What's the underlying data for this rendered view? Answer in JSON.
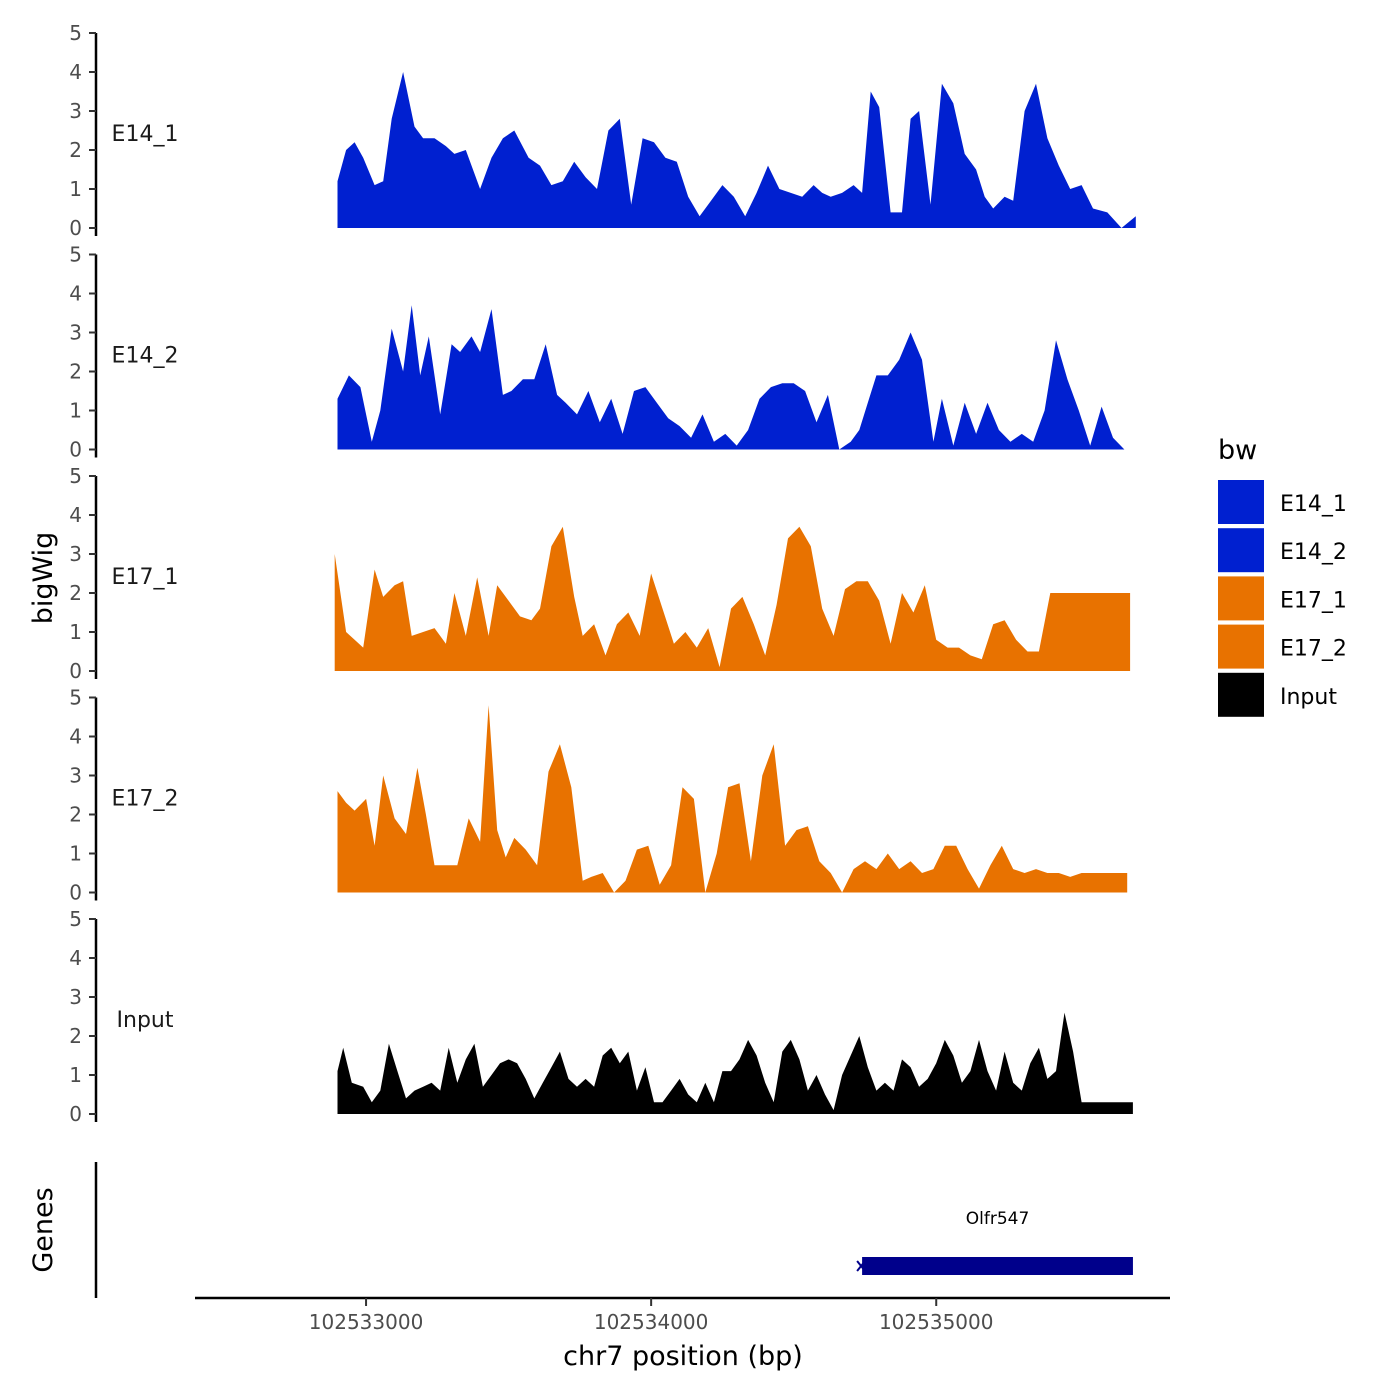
{
  "chart_data": {
    "type": "area",
    "ylabel": "bigWig",
    "xlabel": "chr7 position (bp)",
    "ylim": [
      0,
      5
    ],
    "yticks": [
      0,
      1,
      2,
      3,
      4,
      5
    ],
    "xlim": [
      102532400,
      102535820
    ],
    "xticks": [
      102533000,
      102534000,
      102535000
    ],
    "xtick_labels": [
      "102533000",
      "102534000",
      "102535000"
    ],
    "genes_label": "Genes",
    "legend": {
      "title": "bw",
      "entries": [
        {
          "label": "E14_1",
          "color": "#0020d0"
        },
        {
          "label": "E14_2",
          "color": "#0020d0"
        },
        {
          "label": "E17_1",
          "color": "#e87200"
        },
        {
          "label": "E17_2",
          "color": "#e87200"
        },
        {
          "label": "Input",
          "color": "#000000"
        }
      ]
    },
    "series": [
      {
        "name": "E14_1",
        "color": "#0020d0",
        "x": [
          102532900,
          102532930,
          102532960,
          102532990,
          102533030,
          102533060,
          102533090,
          102533130,
          102533170,
          102533200,
          102533240,
          102533280,
          102533310,
          102533350,
          102533400,
          102533440,
          102533480,
          102533520,
          102533570,
          102533610,
          102533650,
          102533690,
          102533730,
          102533770,
          102533810,
          102533850,
          102533890,
          102533930,
          102533970,
          102534010,
          102534050,
          102534090,
          102534130,
          102534170,
          102534210,
          102534250,
          102534290,
          102534330,
          102534370,
          102534410,
          102534450,
          102534490,
          102534530,
          102534570,
          102534600,
          102534630,
          102534670,
          102534710,
          102534740,
          102534770,
          102534800,
          102534840,
          102534880,
          102534910,
          102534940,
          102534980,
          102535020,
          102535060,
          102535100,
          102535140,
          102535170,
          102535200,
          102535240,
          102535270,
          102535310,
          102535350,
          102535390,
          102535430,
          102535470,
          102535510,
          102535550,
          102535600,
          102535650,
          102535700
        ],
        "values": [
          1.2,
          2.0,
          2.2,
          1.8,
          1.1,
          1.2,
          2.8,
          4.0,
          2.6,
          2.3,
          2.3,
          2.1,
          1.9,
          2.0,
          1.0,
          1.8,
          2.3,
          2.5,
          1.8,
          1.6,
          1.1,
          1.2,
          1.7,
          1.3,
          1.0,
          2.5,
          2.8,
          0.6,
          2.3,
          2.2,
          1.8,
          1.7,
          0.8,
          0.3,
          0.7,
          1.1,
          0.8,
          0.3,
          0.9,
          1.6,
          1.0,
          0.9,
          0.8,
          1.1,
          0.9,
          0.8,
          0.9,
          1.1,
          0.9,
          3.5,
          3.1,
          0.4,
          0.4,
          2.8,
          3.0,
          0.6,
          3.7,
          3.2,
          1.9,
          1.5,
          0.8,
          0.5,
          0.8,
          0.7,
          3.0,
          3.7,
          2.3,
          1.6,
          1.0,
          1.1,
          0.5,
          0.4,
          0.0,
          0.3
        ]
      },
      {
        "name": "E14_2",
        "color": "#0020d0",
        "x": [
          102532900,
          102532940,
          102532980,
          102533020,
          102533050,
          102533090,
          102533130,
          102533160,
          102533190,
          102533220,
          102533260,
          102533300,
          102533330,
          102533370,
          102533400,
          102533440,
          102533480,
          102533510,
          102533550,
          102533590,
          102533630,
          102533670,
          102533700,
          102533740,
          102533780,
          102533820,
          102533860,
          102533900,
          102533940,
          102533980,
          102534020,
          102534060,
          102534100,
          102534140,
          102534180,
          102534220,
          102534260,
          102534300,
          102534340,
          102534380,
          102534420,
          102534460,
          102534500,
          102534540,
          102534580,
          102534620,
          102534660,
          102534700,
          102534730,
          102534760,
          102534790,
          102534830,
          102534870,
          102534910,
          102534950,
          102534990,
          102535020,
          102535060,
          102535100,
          102535140,
          102535180,
          102535220,
          102535260,
          102535300,
          102535340,
          102535380,
          102535420,
          102535460,
          102535500,
          102535540,
          102535580,
          102535620,
          102535660,
          102535700
        ],
        "values": [
          1.3,
          1.9,
          1.6,
          0.2,
          1.0,
          3.1,
          2.0,
          3.7,
          1.9,
          2.9,
          0.9,
          2.7,
          2.5,
          2.9,
          2.5,
          3.6,
          1.4,
          1.5,
          1.8,
          1.8,
          2.7,
          1.4,
          1.2,
          0.9,
          1.5,
          0.7,
          1.3,
          0.4,
          1.5,
          1.6,
          1.2,
          0.8,
          0.6,
          0.3,
          0.9,
          0.2,
          0.4,
          0.1,
          0.5,
          1.3,
          1.6,
          1.7,
          1.7,
          1.5,
          0.7,
          1.4,
          0.0,
          0.2,
          0.5,
          1.2,
          1.9,
          1.9,
          2.3,
          3.0,
          2.3,
          0.2,
          1.3,
          0.1,
          1.2,
          0.4,
          1.2,
          0.5,
          0.2,
          0.4,
          0.2,
          1.0,
          2.8,
          1.8,
          1.0,
          0.1,
          1.1,
          0.3,
          0.0,
          0.0
        ]
      },
      {
        "name": "E17_1",
        "color": "#e87200",
        "x": [
          102532890,
          102532930,
          102532960,
          102532990,
          102533030,
          102533060,
          102533100,
          102533130,
          102533160,
          102533200,
          102533240,
          102533280,
          102533310,
          102533350,
          102533390,
          102533430,
          102533460,
          102533500,
          102533540,
          102533580,
          102533610,
          102533650,
          102533690,
          102533730,
          102533760,
          102533800,
          102533840,
          102533880,
          102533920,
          102533960,
          102534000,
          102534040,
          102534080,
          102534120,
          102534160,
          102534200,
          102534240,
          102534280,
          102534320,
          102534360,
          102534400,
          102534440,
          102534480,
          102534520,
          102534560,
          102534600,
          102534640,
          102534680,
          102534720,
          102534760,
          102534800,
          102534840,
          102534880,
          102534920,
          102534960,
          102535000,
          102535040,
          102535080,
          102535120,
          102535160,
          102535200,
          102535240,
          102535280,
          102535320,
          102535360,
          102535400,
          102535440,
          102535480,
          102535520,
          102535560,
          102535600,
          102535640,
          102535680
        ],
        "values": [
          3.0,
          1.0,
          0.8,
          0.6,
          2.6,
          1.9,
          2.2,
          2.3,
          0.9,
          1.0,
          1.1,
          0.7,
          2.0,
          0.9,
          2.4,
          0.9,
          2.2,
          1.8,
          1.4,
          1.3,
          1.6,
          3.2,
          3.7,
          1.9,
          0.9,
          1.2,
          0.4,
          1.2,
          1.5,
          0.9,
          2.5,
          1.6,
          0.7,
          1.0,
          0.6,
          1.1,
          0.1,
          1.6,
          1.9,
          1.2,
          0.4,
          1.7,
          3.4,
          3.7,
          3.2,
          1.6,
          0.9,
          2.1,
          2.3,
          2.3,
          1.8,
          0.7,
          2.0,
          1.5,
          2.2,
          0.8,
          0.6,
          0.6,
          0.4,
          0.3,
          1.2,
          1.3,
          0.8,
          0.5,
          0.5,
          2.0,
          2.0,
          2.0,
          2.0,
          2.0,
          2.0,
          2.0,
          2.0
        ]
      },
      {
        "name": "E17_2",
        "color": "#e87200",
        "x": [
          102532900,
          102532930,
          102532960,
          102533000,
          102533030,
          102533060,
          102533100,
          102533140,
          102533180,
          102533210,
          102533240,
          102533280,
          102533320,
          102533360,
          102533400,
          102533430,
          102533460,
          102533490,
          102533520,
          102533560,
          102533600,
          102533640,
          102533680,
          102533720,
          102533760,
          102533790,
          102533830,
          102533870,
          102533910,
          102533950,
          102533990,
          102534030,
          102534070,
          102534110,
          102534150,
          102534190,
          102534230,
          102534270,
          102534310,
          102534350,
          102534390,
          102534430,
          102534470,
          102534510,
          102534550,
          102534590,
          102534630,
          102534670,
          102534710,
          102534750,
          102534790,
          102534830,
          102534870,
          102534910,
          102534950,
          102534990,
          102535030,
          102535070,
          102535110,
          102535150,
          102535190,
          102535230,
          102535270,
          102535310,
          102535350,
          102535390,
          102535430,
          102535470,
          102535510,
          102535550,
          102535590,
          102535630,
          102535670
        ],
        "values": [
          2.6,
          2.3,
          2.1,
          2.4,
          1.2,
          3.0,
          1.9,
          1.5,
          3.2,
          2.0,
          0.7,
          0.7,
          0.7,
          1.9,
          1.3,
          4.8,
          1.6,
          0.9,
          1.4,
          1.1,
          0.7,
          3.1,
          3.8,
          2.7,
          0.3,
          0.4,
          0.5,
          0.0,
          0.3,
          1.1,
          1.2,
          0.2,
          0.7,
          2.7,
          2.4,
          0.0,
          1.0,
          2.7,
          2.8,
          0.8,
          3.0,
          3.8,
          1.2,
          1.6,
          1.7,
          0.8,
          0.5,
          0.0,
          0.6,
          0.8,
          0.6,
          1.0,
          0.6,
          0.8,
          0.5,
          0.6,
          1.2,
          1.2,
          0.6,
          0.1,
          0.7,
          1.2,
          0.6,
          0.5,
          0.6,
          0.5,
          0.5,
          0.4,
          0.5,
          0.5,
          0.5,
          0.5,
          0.5
        ]
      },
      {
        "name": "Input",
        "color": "#000000",
        "x": [
          102532900,
          102532920,
          102532950,
          102532990,
          102533020,
          102533050,
          102533080,
          102533110,
          102533140,
          102533170,
          102533200,
          102533230,
          102533260,
          102533290,
          102533320,
          102533350,
          102533380,
          102533410,
          102533440,
          102533470,
          102533500,
          102533530,
          102533560,
          102533590,
          102533620,
          102533650,
          102533680,
          102533710,
          102533740,
          102533770,
          102533800,
          102533830,
          102533860,
          102533890,
          102533920,
          102533950,
          102533980,
          102534010,
          102534040,
          102534070,
          102534100,
          102534130,
          102534160,
          102534190,
          102534220,
          102534250,
          102534280,
          102534310,
          102534340,
          102534370,
          102534400,
          102534430,
          102534460,
          102534490,
          102534520,
          102534550,
          102534580,
          102534610,
          102534640,
          102534670,
          102534700,
          102534730,
          102534760,
          102534790,
          102534820,
          102534850,
          102534880,
          102534910,
          102534940,
          102534970,
          102535000,
          102535030,
          102535060,
          102535090,
          102535120,
          102535150,
          102535180,
          102535210,
          102535240,
          102535270,
          102535300,
          102535330,
          102535360,
          102535390,
          102535420,
          102535450,
          102535480,
          102535510,
          102535540,
          102535570,
          102535600,
          102535630,
          102535660,
          102535690
        ],
        "values": [
          1.1,
          1.7,
          0.8,
          0.7,
          0.3,
          0.6,
          1.8,
          1.1,
          0.4,
          0.6,
          0.7,
          0.8,
          0.6,
          1.7,
          0.8,
          1.4,
          1.8,
          0.7,
          1.0,
          1.3,
          1.4,
          1.3,
          0.9,
          0.4,
          0.8,
          1.2,
          1.6,
          0.9,
          0.7,
          0.9,
          0.7,
          1.5,
          1.7,
          1.3,
          1.6,
          0.6,
          1.2,
          0.3,
          0.3,
          0.6,
          0.9,
          0.5,
          0.3,
          0.8,
          0.3,
          1.1,
          1.1,
          1.4,
          1.9,
          1.5,
          0.8,
          0.3,
          1.6,
          1.9,
          1.4,
          0.6,
          1.0,
          0.5,
          0.1,
          1.0,
          1.5,
          2.0,
          1.2,
          0.6,
          0.8,
          0.6,
          1.4,
          1.2,
          0.7,
          0.9,
          1.3,
          1.9,
          1.5,
          0.8,
          1.1,
          1.9,
          1.1,
          0.6,
          1.6,
          0.8,
          0.6,
          1.3,
          1.7,
          0.9,
          1.1,
          2.6,
          1.6,
          0.3,
          0.3,
          0.3,
          0.3,
          0.3,
          0.3,
          0.3
        ]
      }
    ],
    "genes": [
      {
        "name": "Olfr547",
        "start": 102534740,
        "end": 102535690,
        "color": "#00008b"
      }
    ]
  }
}
